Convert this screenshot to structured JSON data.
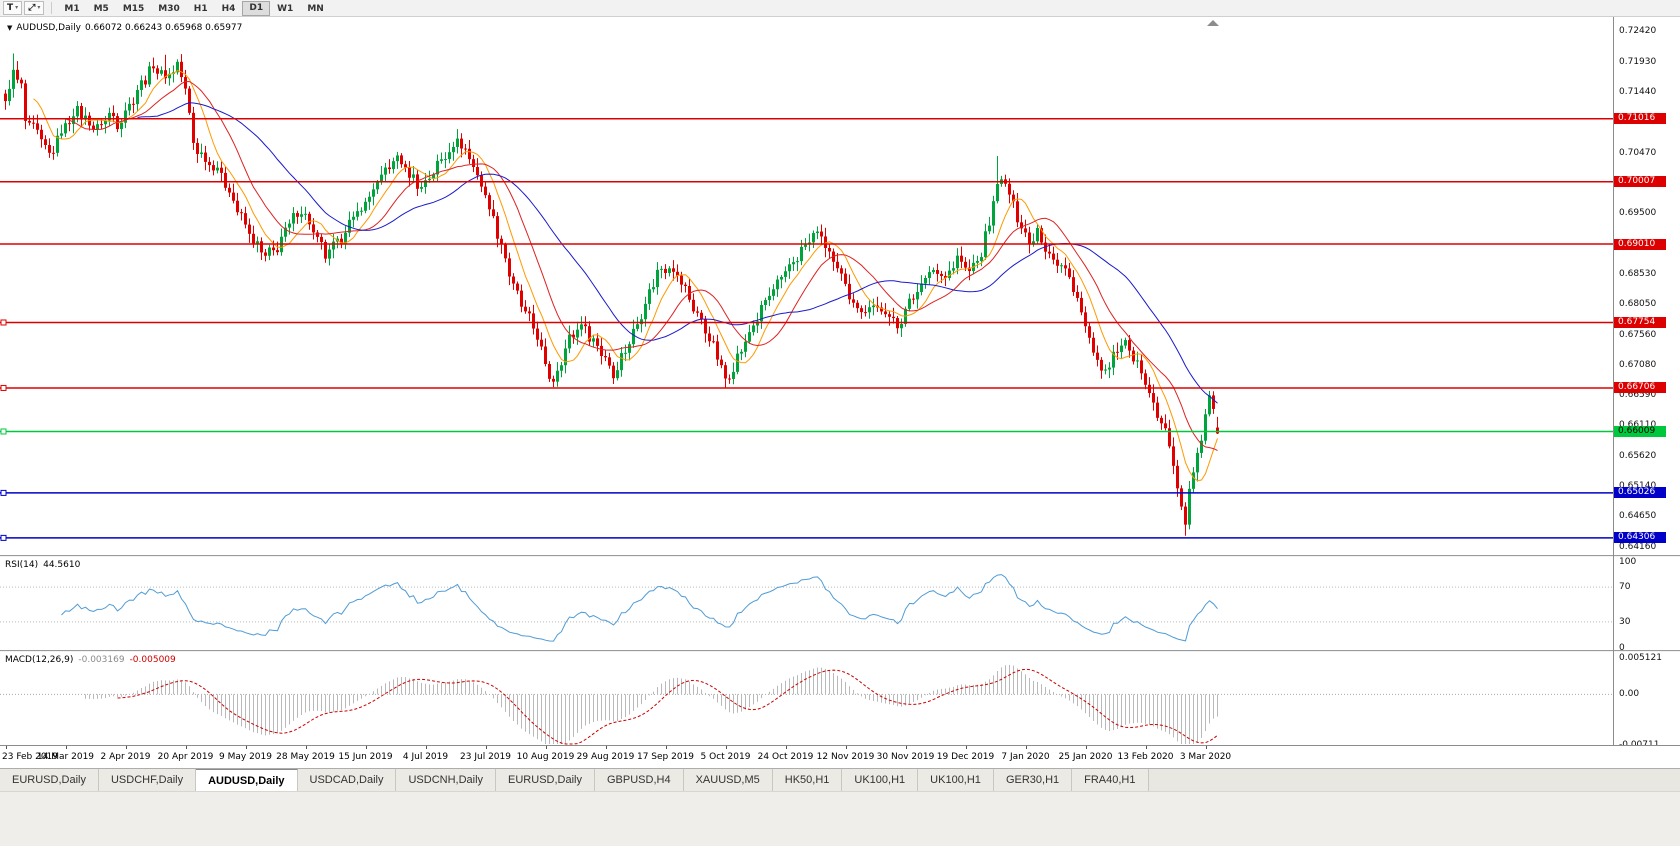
{
  "toolbar": {
    "icons": {
      "t_tool": "T",
      "tools": "⤢",
      "caret": "▾"
    },
    "timeframes": [
      "M1",
      "M5",
      "M15",
      "M30",
      "H1",
      "H4",
      "D1",
      "W1",
      "MN"
    ],
    "active_timeframe": "D1"
  },
  "chart": {
    "legend_icon": "▼",
    "legend_symbol": "AUDUSD,Daily",
    "legend_ohlc": "0.66072 0.66243 0.65968 0.65977"
  },
  "price_axis": {
    "labels": [
      "0.72420",
      "0.71930",
      "0.71440",
      "0.70470",
      "0.69500",
      "0.68530",
      "0.68050",
      "0.67560",
      "0.67080",
      "0.66590",
      "0.66110",
      "0.65620",
      "0.65140",
      "0.64650",
      "0.64160"
    ]
  },
  "rsi": {
    "name": "RSI(14)",
    "value": "44.5610",
    "levels": [
      "100",
      "70",
      "30",
      "0"
    ],
    "line_color": "#4f9bd6"
  },
  "macd": {
    "name": "MACD(12,26,9)",
    "value_main": "-0.003169",
    "value_signal": "-0.005009",
    "levels": [
      "0.005121",
      "0.00",
      "-0.00711"
    ],
    "hist_color": "#b9b9b9",
    "signal_color": "#cc0000"
  },
  "date_axis": [
    "23 Feb 2019",
    "14 Mar 2019",
    "2 Apr 2019",
    "20 Apr 2019",
    "9 May 2019",
    "28 May 2019",
    "15 Jun 2019",
    "4 Jul 2019",
    "23 Jul 2019",
    "10 Aug 2019",
    "29 Aug 2019",
    "17 Sep 2019",
    "5 Oct 2019",
    "24 Oct 2019",
    "12 Nov 2019",
    "30 Nov 2019",
    "19 Dec 2019",
    "7 Jan 2020",
    "25 Jan 2020",
    "13 Feb 2020",
    "3 Mar 2020"
  ],
  "tabs": [
    "EURUSD,Daily",
    "USDCHF,Daily",
    "AUDUSD,Daily",
    "USDCAD,Daily",
    "USDCNH,Daily",
    "EURUSD,Daily",
    "GBPUSD,H4",
    "XAUUSD,M5",
    "HK50,H1",
    "UK100,H1",
    "UK100,H1",
    "GER30,H1",
    "FRA40,H1"
  ],
  "active_tab_index": 2,
  "chart_data": {
    "type": "candlestick",
    "symbol": "AUDUSD",
    "timeframe": "Daily",
    "title": "AUDUSD,Daily",
    "last_ohlc": {
      "open": 0.66072,
      "high": 0.66243,
      "low": 0.65968,
      "close": 0.65977
    },
    "price_range": [
      0.6416,
      0.7242
    ],
    "bars": 304,
    "colors": {
      "up": "#00a43c",
      "down": "#e00000"
    },
    "close_anchors": [
      [
        0,
        0.7125
      ],
      [
        2,
        0.7178
      ],
      [
        4,
        0.715
      ],
      [
        5,
        0.7098
      ],
      [
        8,
        0.7078
      ],
      [
        11,
        0.7042
      ],
      [
        13,
        0.7068
      ],
      [
        15,
        0.7092
      ],
      [
        18,
        0.7116
      ],
      [
        20,
        0.71
      ],
      [
        23,
        0.7086
      ],
      [
        26,
        0.711
      ],
      [
        28,
        0.7094
      ],
      [
        31,
        0.7124
      ],
      [
        34,
        0.7158
      ],
      [
        37,
        0.7186
      ],
      [
        40,
        0.7168
      ],
      [
        43,
        0.7188
      ],
      [
        45,
        0.715
      ],
      [
        47,
        0.7062
      ],
      [
        50,
        0.7036
      ],
      [
        53,
        0.7022
      ],
      [
        56,
        0.6986
      ],
      [
        59,
        0.6942
      ],
      [
        62,
        0.6906
      ],
      [
        65,
        0.688
      ],
      [
        68,
        0.6896
      ],
      [
        71,
        0.6934
      ],
      [
        74,
        0.6958
      ],
      [
        77,
        0.692
      ],
      [
        80,
        0.6882
      ],
      [
        83,
        0.6902
      ],
      [
        86,
        0.6934
      ],
      [
        89,
        0.6958
      ],
      [
        92,
        0.6988
      ],
      [
        95,
        0.7018
      ],
      [
        98,
        0.704
      ],
      [
        101,
        0.7012
      ],
      [
        104,
        0.6992
      ],
      [
        107,
        0.7018
      ],
      [
        110,
        0.7044
      ],
      [
        113,
        0.7068
      ],
      [
        116,
        0.704
      ],
      [
        119,
        0.6996
      ],
      [
        121,
        0.696
      ],
      [
        124,
        0.69
      ],
      [
        127,
        0.6832
      ],
      [
        130,
        0.679
      ],
      [
        133,
        0.6756
      ],
      [
        135,
        0.6702
      ],
      [
        137,
        0.6682
      ],
      [
        139,
        0.6718
      ],
      [
        141,
        0.6748
      ],
      [
        144,
        0.6774
      ],
      [
        147,
        0.6746
      ],
      [
        150,
        0.672
      ],
      [
        152,
        0.6692
      ],
      [
        154,
        0.672
      ],
      [
        157,
        0.6758
      ],
      [
        160,
        0.6808
      ],
      [
        163,
        0.6856
      ],
      [
        166,
        0.6868
      ],
      [
        169,
        0.684
      ],
      [
        172,
        0.68
      ],
      [
        175,
        0.6764
      ],
      [
        178,
        0.6722
      ],
      [
        180,
        0.6682
      ],
      [
        182,
        0.6706
      ],
      [
        185,
        0.6744
      ],
      [
        188,
        0.6784
      ],
      [
        191,
        0.682
      ],
      [
        194,
        0.6844
      ],
      [
        197,
        0.6874
      ],
      [
        200,
        0.6898
      ],
      [
        203,
        0.6922
      ],
      [
        205,
        0.6898
      ],
      [
        208,
        0.6858
      ],
      [
        211,
        0.682
      ],
      [
        214,
        0.6792
      ],
      [
        217,
        0.6806
      ],
      [
        220,
        0.6786
      ],
      [
        223,
        0.6772
      ],
      [
        226,
        0.6806
      ],
      [
        229,
        0.684
      ],
      [
        232,
        0.6858
      ],
      [
        235,
        0.685
      ],
      [
        238,
        0.6878
      ],
      [
        241,
        0.6856
      ],
      [
        244,
        0.6886
      ],
      [
        246,
        0.6936
      ],
      [
        248,
        0.7
      ],
      [
        250,
        0.6998
      ],
      [
        252,
        0.696
      ],
      [
        254,
        0.6932
      ],
      [
        256,
        0.6902
      ],
      [
        258,
        0.6924
      ],
      [
        260,
        0.6896
      ],
      [
        263,
        0.687
      ],
      [
        266,
        0.685
      ],
      [
        269,
        0.6792
      ],
      [
        272,
        0.6722
      ],
      [
        275,
        0.6692
      ],
      [
        277,
        0.672
      ],
      [
        280,
        0.6744
      ],
      [
        282,
        0.6722
      ],
      [
        284,
        0.6696
      ],
      [
        286,
        0.6662
      ],
      [
        288,
        0.6626
      ],
      [
        290,
        0.6602
      ],
      [
        292,
        0.6546
      ],
      [
        294,
        0.6482
      ],
      [
        295,
        0.6452
      ],
      [
        296,
        0.6512
      ],
      [
        298,
        0.6562
      ],
      [
        300,
        0.6622
      ],
      [
        301,
        0.6652
      ],
      [
        302,
        0.664
      ],
      [
        303,
        0.65977
      ]
    ],
    "high_overrides": {
      "2": 0.7206,
      "40": 0.7204,
      "113": 0.7085,
      "248": 0.7042
    },
    "low_overrides": {
      "137": 0.6672,
      "152": 0.6677,
      "180": 0.6671,
      "295": 0.6434
    },
    "horizontal_lines": [
      {
        "price": 0.71016,
        "label": "0.71016",
        "color": "#dd0000",
        "text": "#ffffff",
        "handle": false
      },
      {
        "price": 0.70007,
        "label": "0.70007",
        "color": "#dd0000",
        "text": "#ffffff",
        "handle": false
      },
      {
        "price": 0.6901,
        "label": "0.69010",
        "color": "#dd0000",
        "text": "#ffffff",
        "handle": false
      },
      {
        "price": 0.67754,
        "label": "0.67754",
        "color": "#dd0000",
        "text": "#ffffff",
        "handle": true
      },
      {
        "price": 0.66706,
        "label": "0.66706",
        "color": "#dd0000",
        "text": "#ffffff",
        "handle": true
      },
      {
        "price": 0.66009,
        "label": "0.66009",
        "color": "#00c83c",
        "text": "#000000",
        "handle": true
      },
      {
        "price": 0.65026,
        "label": "0.65026",
        "color": "#0000c8",
        "text": "#ffffff",
        "handle": true
      },
      {
        "price": 0.64306,
        "label": "0.64306",
        "color": "#0000c8",
        "text": "#ffffff",
        "handle": true
      }
    ],
    "moving_averages": [
      {
        "period": 8,
        "color": "#ff9900"
      },
      {
        "period": 16,
        "color": "#dd2222"
      },
      {
        "period": 34,
        "color": "#1a1acc"
      }
    ],
    "indicators": [
      {
        "name": "RSI",
        "period": 14,
        "value": 44.561,
        "range": [
          0,
          100
        ],
        "guides": [
          70,
          30
        ]
      },
      {
        "name": "MACD",
        "params": [
          12,
          26,
          9
        ],
        "values": [
          -0.003169,
          -0.005009
        ],
        "range": [
          -0.00711,
          0.005121
        ]
      }
    ]
  }
}
